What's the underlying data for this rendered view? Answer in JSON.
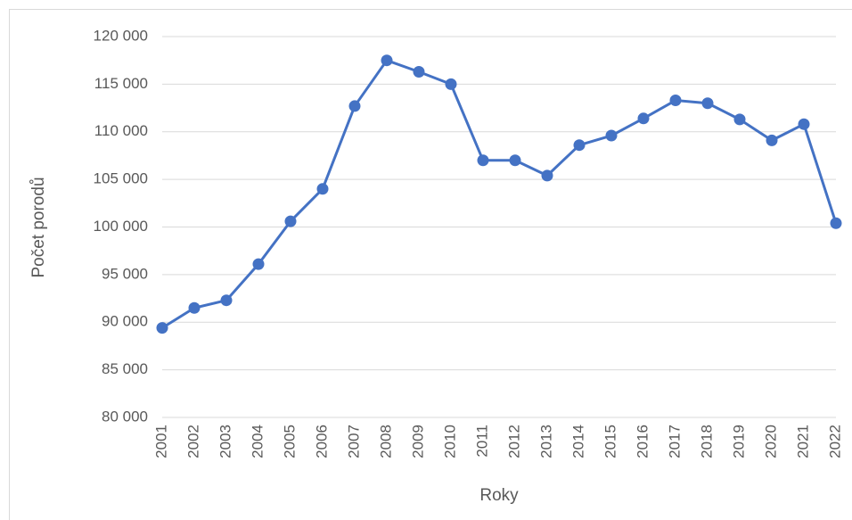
{
  "chart_data": {
    "type": "line",
    "x_label": "Roky",
    "y_label": "Počet porodů",
    "categories": [
      "2001",
      "2002",
      "2003",
      "2004",
      "2005",
      "2006",
      "2007",
      "2008",
      "2009",
      "2010",
      "2011",
      "2012",
      "2013",
      "2014",
      "2015",
      "2016",
      "2017",
      "2018",
      "2019",
      "2020",
      "2021",
      "2022"
    ],
    "series": [
      {
        "name": "Počet porodů",
        "color": "#4472c4",
        "values": [
          89400,
          91500,
          92300,
          96100,
          100600,
          104000,
          112700,
          117500,
          116300,
          115000,
          107000,
          107000,
          105400,
          108600,
          109600,
          111400,
          113300,
          113000,
          111300,
          109100,
          110800,
          100400
        ]
      }
    ],
    "ylim": [
      80000,
      120000
    ],
    "yticks": [
      {
        "value": 80000,
        "label": "80 000"
      },
      {
        "value": 85000,
        "label": "85 000"
      },
      {
        "value": 90000,
        "label": "90 000"
      },
      {
        "value": 95000,
        "label": "95 000"
      },
      {
        "value": 100000,
        "label": "100 000"
      },
      {
        "value": 105000,
        "label": "105 000"
      },
      {
        "value": 110000,
        "label": "110 000"
      },
      {
        "value": 115000,
        "label": "115 000"
      },
      {
        "value": 120000,
        "label": "120 000"
      }
    ],
    "grid": true
  }
}
